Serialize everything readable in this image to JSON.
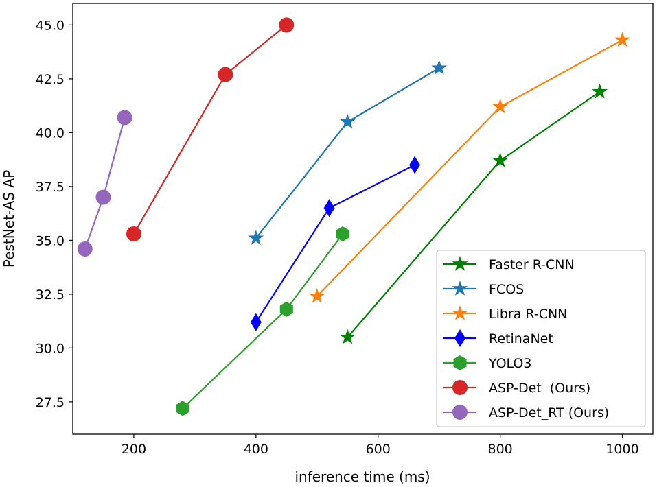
{
  "chart_data": {
    "type": "line",
    "title": "",
    "xlabel": "inference time (ms)",
    "ylabel": "PestNet-AS AP",
    "xlim": [
      100,
      1050
    ],
    "ylim": [
      26.0,
      46.0
    ],
    "xticks": [
      200,
      400,
      600,
      800,
      1000
    ],
    "yticks": [
      27.5,
      30.0,
      32.5,
      35.0,
      37.5,
      40.0,
      42.5,
      45.0
    ],
    "ytick_labels": [
      "27.5",
      "30.0",
      "32.5",
      "35.0",
      "37.5",
      "40.0",
      "42.5",
      "45.0"
    ],
    "grid": false,
    "legend_position": "lower-right",
    "series": [
      {
        "name": "Faster R-CNN",
        "color": "#008000",
        "marker": "star",
        "x": [
          550,
          800,
          963
        ],
        "y": [
          30.5,
          38.7,
          41.9
        ]
      },
      {
        "name": "FCOS",
        "color": "#1f77b4",
        "marker": "star",
        "x": [
          400,
          550,
          700
        ],
        "y": [
          35.1,
          40.5,
          43.0
        ]
      },
      {
        "name": "Libra R-CNN",
        "color": "#ff7f0e",
        "marker": "star",
        "x": [
          500,
          800,
          1000
        ],
        "y": [
          32.4,
          41.2,
          44.3
        ]
      },
      {
        "name": "RetinaNet",
        "color": "#0000ff",
        "marker": "diamond",
        "x": [
          400,
          520,
          660
        ],
        "y": [
          31.2,
          36.5,
          38.5
        ]
      },
      {
        "name": "YOLO3",
        "color": "#2ca02c",
        "marker": "hexagon",
        "x": [
          280,
          450,
          542
        ],
        "y": [
          27.2,
          31.8,
          35.3
        ]
      },
      {
        "name": "ASP-Det  (Ours)",
        "color": "#d62728",
        "marker": "circle",
        "x": [
          200,
          350,
          450
        ],
        "y": [
          35.3,
          42.7,
          45.0
        ]
      },
      {
        "name": "ASP-Det_RT (Ours)",
        "color": "#9467bd",
        "marker": "circle",
        "x": [
          120,
          150,
          185
        ],
        "y": [
          34.6,
          37.0,
          40.7
        ]
      }
    ]
  }
}
